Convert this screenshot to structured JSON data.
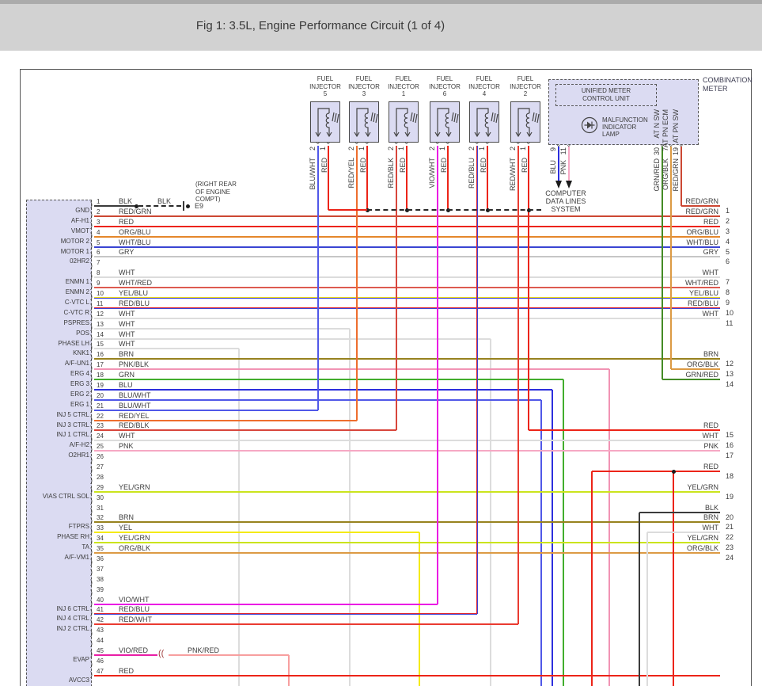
{
  "title": "Fig 1: 3.5L, Engine Performance Circuit (1 of 4)",
  "colors": {
    "BLK": "#3b3b3b",
    "RED": "#ec2418",
    "RED/GRN": "#cc4733",
    "RED/YEL": "#ee6e2e",
    "RED/BLK": "#d8463c",
    "RED/BLU": [
      "#e0262b",
      "#3d43d6"
    ],
    "RED/WHT": "#ea3b31",
    "ORG/BLU": "#e5872b",
    "ORG/BLK": "#dc9a44",
    "WHT": "#dcdcdc",
    "WHT/BLU": "#3a44d2",
    "WHT/RED": "#dd5a50",
    "GRY": "#c6c6c6",
    "YEL": "#f4ea14",
    "YEL/GRN": "#cbe41d",
    "YEL/BLU": [
      "#ecd91d",
      "#3a3fd4"
    ],
    "BLU": "#2d2fdd",
    "BLU/WHT": "#5058e8",
    "GRN": "#42ad2d",
    "GRN/RED": "#448c26",
    "BRN": "#97821f",
    "PNK": "#f6a8c4",
    "PNK/BLK": "#f193b4",
    "PNK/RED": "#f79f9f",
    "VIO/WHT": "#ea1ce4",
    "VIO/RED": "#e91ea6",
    "box_fill": "#dbdbf2",
    "titlebar_bg": "#d2d2d2",
    "titlebar_strip": "#ababab",
    "text": "#3c3c3c"
  },
  "injector_heading": [
    "FUEL",
    "INJECTOR"
  ],
  "injectors": [
    {
      "num": "5",
      "pin2_num": "2",
      "pin1_num": "1",
      "pin2_wire": "BLU/WHT",
      "pin1_wire": "RED"
    },
    {
      "num": "3",
      "pin2_num": "2",
      "pin1_num": "1",
      "pin2_wire": "RED/YEL",
      "pin1_wire": "RED"
    },
    {
      "num": "1",
      "pin2_num": "2",
      "pin1_num": "1",
      "pin2_wire": "RED/BLK",
      "pin1_wire": "RED"
    },
    {
      "num": "6",
      "pin2_num": "2",
      "pin1_num": "1",
      "pin2_wire": "VIO/WHT",
      "pin1_wire": "RED"
    },
    {
      "num": "4",
      "pin2_num": "2",
      "pin1_num": "1",
      "pin2_wire": "RED/BLU",
      "pin1_wire": "RED"
    },
    {
      "num": "2",
      "pin2_num": "2",
      "pin1_num": "1",
      "pin2_wire": "RED/WHT",
      "pin1_wire": "RED"
    }
  ],
  "meter": {
    "combination": [
      "COMBINATION",
      "METER"
    ],
    "unified": [
      "UNIFIED METER",
      "CONTROL UNIT"
    ],
    "mil": [
      "MALFUNCTION",
      "INDICATOR",
      "LAMP"
    ],
    "at_pins": [
      {
        "label": "AT N SW",
        "num": "30",
        "wire": "GRN/RED"
      },
      {
        "label": "AT PN ECM",
        "num": "7",
        "wire": "ORG/BLK"
      },
      {
        "label": "AT PN SW",
        "num": "19",
        "wire": "RED/GRN"
      }
    ],
    "data_pins": [
      {
        "num": "9",
        "wire": "BLU"
      },
      {
        "num": "11",
        "wire": "PNK"
      }
    ],
    "computer": [
      "COMPUTER",
      "DATA LINES",
      "SYSTEM"
    ]
  },
  "ground": {
    "note": [
      "(RIGHT REAR",
      "OF ENGINE",
      "COMPT)"
    ],
    "id": "E9",
    "wire": "BLK"
  },
  "evap": {
    "wire2": "PNK/RED"
  },
  "left_pins": [
    {
      "n": 1,
      "label": "GND",
      "wire": "BLK"
    },
    {
      "n": 2,
      "label": "AF-H1",
      "wire": "RED/GRN"
    },
    {
      "n": 3,
      "label": "VMOT",
      "wire": "RED"
    },
    {
      "n": 4,
      "label": "MOTOR 2",
      "wire": "ORG/BLU"
    },
    {
      "n": 5,
      "label": "MOTOR 1",
      "wire": "WHT/BLU"
    },
    {
      "n": 6,
      "label": "02HR2",
      "wire": "GRY"
    },
    {
      "n": 7,
      "label": "",
      "wire": ""
    },
    {
      "n": 8,
      "label": "ENMN 1",
      "wire": "WHT"
    },
    {
      "n": 9,
      "label": "ENMN 2",
      "wire": "WHT/RED"
    },
    {
      "n": 10,
      "label": "C-VTC L",
      "wire": "YEL/BLU"
    },
    {
      "n": 11,
      "label": "C-VTC R",
      "wire": "RED/BLU"
    },
    {
      "n": 12,
      "label": "PSPRES",
      "wire": "WHT"
    },
    {
      "n": 13,
      "label": "POS",
      "wire": "WHT"
    },
    {
      "n": 14,
      "label": "PHASE LH",
      "wire": "WHT"
    },
    {
      "n": 15,
      "label": "KNK1",
      "wire": "WHT"
    },
    {
      "n": 16,
      "label": "A/F-UN1",
      "wire": "BRN"
    },
    {
      "n": 17,
      "label": "ERG 4",
      "wire": "PNK/BLK"
    },
    {
      "n": 18,
      "label": "ERG 3",
      "wire": "GRN"
    },
    {
      "n": 19,
      "label": "ERG 2",
      "wire": "BLU"
    },
    {
      "n": 20,
      "label": "ERG 1",
      "wire": "BLU/WHT"
    },
    {
      "n": 21,
      "label": "INJ 5 CTRL",
      "wire": "BLU/WHT"
    },
    {
      "n": 22,
      "label": "INJ 3 CTRL",
      "wire": "RED/YEL"
    },
    {
      "n": 23,
      "label": "INJ 1 CTRL",
      "wire": "RED/BLK"
    },
    {
      "n": 24,
      "label": "A/F-H2",
      "wire": "WHT"
    },
    {
      "n": 25,
      "label": "O2HR1",
      "wire": "PNK"
    },
    {
      "n": 26,
      "label": "",
      "wire": ""
    },
    {
      "n": 27,
      "label": "",
      "wire": ""
    },
    {
      "n": 28,
      "label": "",
      "wire": ""
    },
    {
      "n": 29,
      "label": "VIAS CTRL SOL",
      "wire": "YEL/GRN"
    },
    {
      "n": 30,
      "label": "",
      "wire": ""
    },
    {
      "n": 31,
      "label": "",
      "wire": ""
    },
    {
      "n": 32,
      "label": "FTPRS",
      "wire": "BRN"
    },
    {
      "n": 33,
      "label": "PHASE RH",
      "wire": "YEL"
    },
    {
      "n": 34,
      "label": "TA",
      "wire": "YEL/GRN"
    },
    {
      "n": 35,
      "label": "A/F-VM1",
      "wire": "ORG/BLK"
    },
    {
      "n": 36,
      "label": "",
      "wire": ""
    },
    {
      "n": 37,
      "label": "",
      "wire": ""
    },
    {
      "n": 38,
      "label": "",
      "wire": ""
    },
    {
      "n": 39,
      "label": "",
      "wire": ""
    },
    {
      "n": 40,
      "label": "INJ 6 CTRL",
      "wire": "VIO/WHT"
    },
    {
      "n": 41,
      "label": "INJ 4 CTRL",
      "wire": "RED/BLU"
    },
    {
      "n": 42,
      "label": "INJ 2 CTRL",
      "wire": "RED/WHT"
    },
    {
      "n": 43,
      "label": "",
      "wire": ""
    },
    {
      "n": 44,
      "label": "",
      "wire": ""
    },
    {
      "n": 45,
      "label": "EVAP",
      "wire": "VIO/RED"
    },
    {
      "n": 46,
      "label": "",
      "wire": ""
    },
    {
      "n": 47,
      "label": "AVCC3",
      "wire": "RED"
    }
  ],
  "right_pins": [
    {
      "n": 1,
      "wire": "RED/GRN",
      "row": 1
    },
    {
      "n": 2,
      "wire": "RED/GRN",
      "row": 2
    },
    {
      "n": 3,
      "wire": "RED",
      "row": 3
    },
    {
      "n": 4,
      "wire": "ORG/BLU",
      "row": 4
    },
    {
      "n": 5,
      "wire": "WHT/BLU",
      "row": 5
    },
    {
      "n": 6,
      "wire": "GRY",
      "row": 6
    },
    {
      "n": 7,
      "wire": "WHT",
      "row": 8
    },
    {
      "n": 8,
      "wire": "WHT/RED",
      "row": 9
    },
    {
      "n": 9,
      "wire": "YEL/BLU",
      "row": 10
    },
    {
      "n": 10,
      "wire": "RED/BLU",
      "row": 11
    },
    {
      "n": 11,
      "wire": "WHT",
      "row": 12
    },
    {
      "n": 12,
      "wire": "BRN",
      "row": 16
    },
    {
      "n": 13,
      "wire": "ORG/BLK",
      "row": 17
    },
    {
      "n": 14,
      "wire": "GRN/RED",
      "row": 18
    },
    {
      "n": 15,
      "wire": "RED",
      "row": 23
    },
    {
      "n": 16,
      "wire": "WHT",
      "row": 24
    },
    {
      "n": 17,
      "wire": "PNK",
      "row": 25
    },
    {
      "n": 18,
      "wire": "RED",
      "row": 27
    },
    {
      "n": 19,
      "wire": "YEL/GRN",
      "row": 29
    },
    {
      "n": 20,
      "wire": "BLK",
      "row": 31
    },
    {
      "n": 21,
      "wire": "BRN",
      "row": 32
    },
    {
      "n": 22,
      "wire": "WHT",
      "row": 33
    },
    {
      "n": 23,
      "wire": "YEL/GRN",
      "row": 34
    },
    {
      "n": 24,
      "wire": "ORG/BLK",
      "row": 35
    }
  ]
}
